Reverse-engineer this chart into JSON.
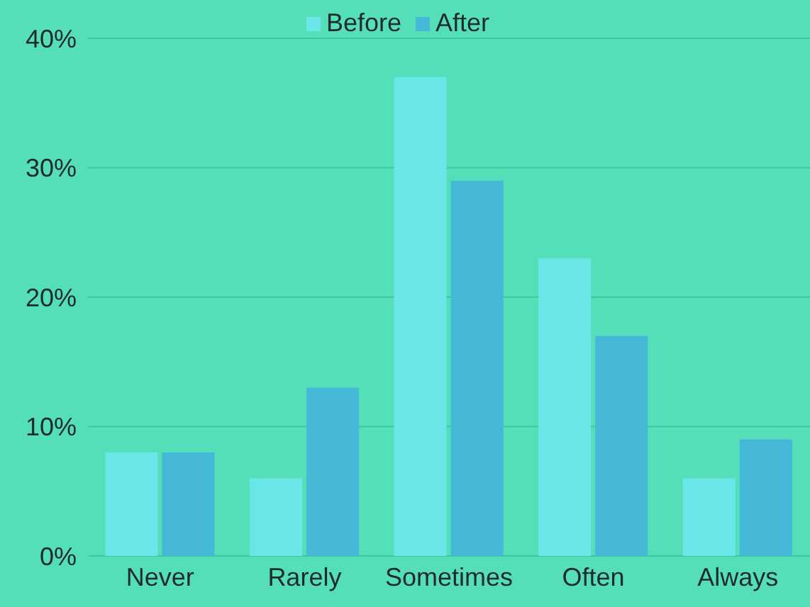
{
  "chart_data": {
    "type": "bar",
    "categories": [
      "Never",
      "Rarely",
      "Sometimes",
      "Often",
      "Always"
    ],
    "series": [
      {
        "name": "Before",
        "color": "#6ae6e8",
        "values": [
          8,
          6,
          37,
          23,
          6
        ]
      },
      {
        "name": "After",
        "color": "#45b8d8",
        "values": [
          8,
          13,
          29,
          17,
          9
        ]
      }
    ],
    "ylim": [
      0,
      40
    ],
    "yticks": [
      {
        "value": 0,
        "label": "0%"
      },
      {
        "value": 10,
        "label": "10%"
      },
      {
        "value": 20,
        "label": "20%"
      },
      {
        "value": 30,
        "label": "30%"
      },
      {
        "value": 40,
        "label": "40%"
      }
    ],
    "grid": "y",
    "legend": "top"
  }
}
